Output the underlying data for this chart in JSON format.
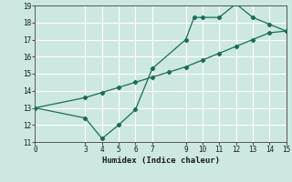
{
  "xlabel": "Humidex (Indice chaleur)",
  "background_color": "#cce8e0",
  "grid_color": "#ffffff",
  "line_color": "#1a6b5a",
  "xlim": [
    0,
    15
  ],
  "ylim": [
    11,
    19
  ],
  "xticks": [
    0,
    3,
    4,
    5,
    6,
    7,
    9,
    10,
    11,
    12,
    13,
    14,
    15
  ],
  "yticks": [
    11,
    12,
    13,
    14,
    15,
    16,
    17,
    18,
    19
  ],
  "series1_x": [
    0,
    3,
    4,
    5,
    6,
    7,
    9,
    9.5,
    10,
    11,
    12,
    13,
    14,
    15
  ],
  "series1_y": [
    13.0,
    12.4,
    11.2,
    12.0,
    12.9,
    15.3,
    17.0,
    18.3,
    18.3,
    18.3,
    19.1,
    18.3,
    17.9,
    17.5
  ],
  "series2_x": [
    0,
    3,
    4,
    5,
    6,
    7,
    8,
    9,
    10,
    11,
    12,
    13,
    14,
    15
  ],
  "series2_y": [
    13.0,
    13.6,
    13.9,
    14.2,
    14.5,
    14.8,
    15.1,
    15.4,
    15.8,
    16.2,
    16.6,
    17.0,
    17.4,
    17.5
  ]
}
